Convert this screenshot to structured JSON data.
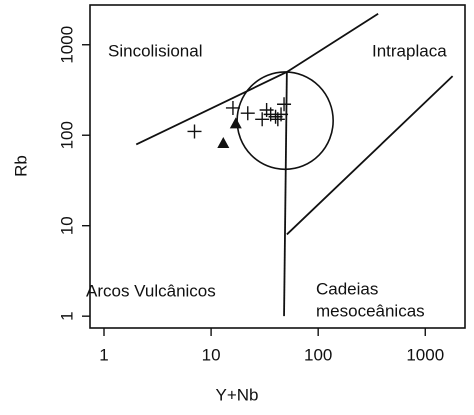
{
  "chart_data": {
    "type": "scatter",
    "x_label": "Y+Nb",
    "y_label": "Rb",
    "log_x": true,
    "log_y": true,
    "xlim": [
      0.74,
      2350
    ],
    "ylim": [
      0.74,
      2750
    ],
    "xticks": [
      1,
      10,
      100,
      1000
    ],
    "yticks": [
      1,
      10,
      100,
      1000
    ],
    "color": "#111111",
    "series": [
      {
        "marker": "cross",
        "x": [
          7,
          16,
          22,
          30,
          33,
          36,
          40,
          45,
          48,
          42
        ],
        "values": [
          110,
          200,
          175,
          150,
          190,
          170,
          160,
          170,
          220,
          150
        ]
      },
      {
        "marker": "triangle",
        "x": [
          13,
          17
        ],
        "values": [
          82,
          135
        ]
      }
    ],
    "boundaries": [
      {
        "x": [
          2,
          51,
          363
        ],
        "values": [
          79,
          500,
          2200
        ]
      },
      {
        "x": [
          51,
          48
        ],
        "values": [
          500,
          1
        ]
      },
      {
        "x": [
          51,
          1800
        ],
        "values": [
          8,
          450
        ]
      }
    ],
    "circle": {
      "x_range": [
        17.5,
        138
      ],
      "y_range": [
        42,
        500
      ]
    },
    "annotations": [
      [
        "Sincolisional"
      ],
      [
        "Intraplaca"
      ],
      [
        "Arcos Vulcânicos"
      ],
      [
        "Cadeias",
        "mesoceânicas"
      ]
    ]
  }
}
